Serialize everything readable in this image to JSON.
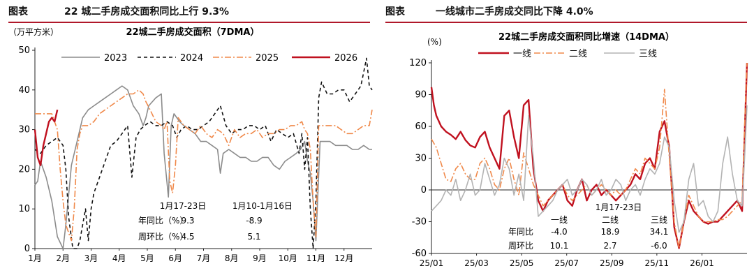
{
  "left": {
    "figure_prefix": "图表",
    "figure_title": "22 城二手房成交面积同比上行 9.3%",
    "chart_title": "22城二手房成交面积（7DMA）",
    "unit": "（万平方米）",
    "table": {
      "col1": "1月17-23日",
      "col2": "1月10-1月16日",
      "rows": [
        {
          "label": "年同比（%）",
          "v1": "9.3",
          "v2": "-8.9"
        },
        {
          "label": "周环比（%）",
          "v1": "4.5",
          "v2": "5.1"
        }
      ]
    }
  },
  "right": {
    "figure_prefix": "图表",
    "figure_title": "一线城市二手房成交同比下降 4.0%",
    "chart_title": "22城二手房成交面积同比增速（14DMA）",
    "unit": "(%)",
    "table": {
      "period": "1月17-23日",
      "cols": [
        "一线",
        "二线",
        "三线"
      ],
      "rows": [
        {
          "label": "年同比",
          "values": [
            "-4.0",
            "18.9",
            "34.1"
          ]
        },
        {
          "label": "周环比",
          "values": [
            "10.1",
            "2.7",
            "-6.0"
          ]
        }
      ]
    }
  },
  "chart_data": [
    {
      "type": "line",
      "title": "22城二手房成交面积（7DMA）",
      "ylabel": "万平方米",
      "ylim": [
        0,
        50
      ],
      "yticks": [
        0,
        10,
        20,
        30,
        40,
        50
      ],
      "xlim": [
        0,
        12
      ],
      "categories": [
        "1月",
        "2月",
        "3月",
        "4月",
        "5月",
        "6月",
        "7月",
        "8月",
        "9月",
        "10月",
        "11月",
        "12月"
      ],
      "legend_position": "top",
      "series": [
        {
          "name": "2023",
          "color": "#8c8c8c",
          "dash": "solid",
          "x": [
            0,
            0.1,
            0.2,
            0.4,
            0.6,
            0.8,
            1.0,
            1.1,
            1.3,
            1.5,
            1.7,
            1.9,
            2.1,
            2.3,
            2.5,
            2.7,
            2.9,
            3.1,
            3.3,
            3.5,
            3.7,
            3.85,
            3.95,
            4.05,
            4.3,
            4.5,
            4.6,
            4.75,
            4.85,
            4.95,
            5.05,
            5.15,
            5.3,
            5.5,
            5.7,
            5.9,
            6.1,
            6.3,
            6.5,
            6.6,
            6.7,
            6.9,
            7.1,
            7.3,
            7.5,
            7.7,
            7.9,
            8.1,
            8.3,
            8.5,
            8.7,
            8.9,
            9.1,
            9.3,
            9.45,
            9.6,
            9.7,
            9.8,
            9.9,
            10.0,
            10.15,
            10.3,
            10.5,
            10.7,
            10.9,
            11.1,
            11.3,
            11.5,
            11.7,
            11.9,
            12.0
          ],
          "y": [
            16,
            17,
            22,
            18,
            12,
            3,
            0,
            6,
            21,
            27,
            33,
            35,
            36,
            37,
            38,
            39,
            40,
            41,
            40,
            36,
            34,
            31,
            33,
            36,
            38,
            39,
            24,
            13,
            31,
            34,
            33,
            32,
            31,
            30,
            29,
            27,
            27,
            26,
            25,
            19,
            24,
            25,
            24,
            23,
            23,
            22,
            22,
            23,
            23,
            21,
            20,
            22,
            23,
            24,
            25,
            27,
            22,
            19,
            12,
            2,
            27,
            27,
            27,
            26,
            26,
            26,
            25,
            25,
            26,
            25,
            25
          ]
        },
        {
          "name": "2024",
          "color": "#111111",
          "dash": "dashed",
          "x": [
            0,
            0.2,
            0.4,
            0.6,
            0.8,
            1.0,
            1.1,
            1.2,
            1.35,
            1.5,
            1.6,
            1.7,
            1.8,
            1.9,
            2.0,
            2.1,
            2.3,
            2.5,
            2.7,
            2.9,
            3.1,
            3.3,
            3.45,
            3.6,
            3.75,
            3.9,
            4.1,
            4.3,
            4.5,
            4.7,
            4.9,
            5.05,
            5.2,
            5.4,
            5.6,
            5.8,
            6.0,
            6.2,
            6.4,
            6.6,
            6.8,
            7.0,
            7.2,
            7.4,
            7.6,
            7.8,
            8.0,
            8.2,
            8.4,
            8.6,
            8.8,
            9.0,
            9.2,
            9.4,
            9.5,
            9.6,
            9.7,
            9.8,
            9.9,
            10.0,
            10.1,
            10.2,
            10.4,
            10.6,
            10.8,
            11.0,
            11.2,
            11.4,
            11.6,
            11.8,
            11.9,
            12.0
          ],
          "y": [
            25,
            24,
            26,
            27,
            28,
            26,
            20,
            8,
            0,
            0,
            2,
            6,
            10,
            2,
            10,
            14,
            18,
            22,
            26,
            27,
            29,
            31,
            18,
            28,
            30,
            31,
            32,
            31,
            31,
            32,
            31,
            28,
            30,
            31,
            30,
            30,
            31,
            32,
            34,
            36,
            31,
            29,
            30,
            30,
            31,
            31,
            30,
            31,
            27,
            30,
            29,
            28,
            29,
            24,
            29,
            20,
            28,
            10,
            0,
            12,
            38,
            42,
            39,
            39,
            40,
            40,
            37,
            39,
            41,
            48,
            41,
            40
          ]
        },
        {
          "name": "2025",
          "color": "#f0894a",
          "dash": "dashdot",
          "x": [
            0,
            0.2,
            0.4,
            0.6,
            0.8,
            0.9,
            1.0,
            1.1,
            1.2,
            1.3,
            1.4,
            1.5,
            1.6,
            1.7,
            1.8,
            1.9,
            2.1,
            2.3,
            2.5,
            2.7,
            2.9,
            3.1,
            3.3,
            3.5,
            3.7,
            3.85,
            3.95,
            4.1,
            4.3,
            4.5,
            4.6,
            4.7,
            4.8,
            4.9,
            5.0,
            5.1,
            5.3,
            5.5,
            5.7,
            5.9,
            6.1,
            6.3,
            6.5,
            6.7,
            6.9,
            7.1,
            7.3,
            7.5,
            7.7,
            7.9,
            8.1,
            8.3,
            8.5,
            8.7,
            8.9,
            9.1,
            9.3,
            9.5,
            9.6,
            9.7,
            9.8,
            9.9,
            10.0,
            10.1,
            10.3,
            10.5,
            10.7,
            10.9,
            11.1,
            11.3,
            11.5,
            11.7,
            11.9,
            12.0
          ],
          "y": [
            34,
            34,
            34,
            34,
            30,
            20,
            12,
            6,
            4,
            2,
            10,
            25,
            29,
            31,
            31,
            31,
            32,
            34,
            35,
            36,
            37,
            38,
            39,
            39,
            40,
            39,
            37,
            35,
            32,
            31,
            30,
            32,
            17,
            14,
            21,
            33,
            31,
            30,
            29,
            31,
            29,
            28,
            30,
            29,
            26,
            30,
            28,
            29,
            29,
            30,
            28,
            29,
            29,
            30,
            30,
            31,
            31,
            32,
            30,
            29,
            25,
            12,
            3,
            31,
            31,
            31,
            31,
            30,
            29,
            29,
            30,
            31,
            31,
            35
          ]
        },
        {
          "name": "2026",
          "color": "#c0111f",
          "dash": "solid",
          "x": [
            0,
            0.1,
            0.2,
            0.3,
            0.4,
            0.5,
            0.6,
            0.7,
            0.8
          ],
          "y": [
            30,
            23,
            21,
            26,
            29,
            32,
            33,
            32,
            35
          ]
        }
      ]
    },
    {
      "type": "line",
      "title": "22城二手房成交面积同比增速（14DMA）",
      "ylabel": "%",
      "ylim": [
        -60,
        120
      ],
      "yticks": [
        -60,
        -30,
        0,
        30,
        60,
        90,
        120
      ],
      "xlim": [
        0,
        13
      ],
      "xticks": [
        "25/01",
        "25/03",
        "25/05",
        "25/07",
        "25/09",
        "25/11",
        "26/01"
      ],
      "legend_position": "top",
      "series": [
        {
          "name": "一线",
          "color": "#c0111f",
          "dash": "solid",
          "x": [
            0,
            0.1,
            0.2,
            0.4,
            0.6,
            0.8,
            1.0,
            1.2,
            1.4,
            1.6,
            1.8,
            2.0,
            2.2,
            2.4,
            2.6,
            2.8,
            3.0,
            3.2,
            3.4,
            3.6,
            3.8,
            4.0,
            4.2,
            4.4,
            4.6,
            4.8,
            5.0,
            5.2,
            5.4,
            5.6,
            5.8,
            6.0,
            6.2,
            6.4,
            6.6,
            6.8,
            7.0,
            7.2,
            7.4,
            7.6,
            7.8,
            8.0,
            8.2,
            8.4,
            8.6,
            8.8,
            9.0,
            9.2,
            9.4,
            9.6,
            9.8,
            10.0,
            10.2,
            10.4,
            10.6,
            10.8,
            11.0,
            11.2,
            11.4,
            11.6,
            11.8,
            12.0,
            12.2,
            12.4,
            12.6,
            12.8,
            12.9,
            13.0
          ],
          "y": [
            97,
            80,
            70,
            60,
            55,
            52,
            48,
            55,
            47,
            42,
            40,
            50,
            55,
            40,
            30,
            20,
            70,
            75,
            50,
            30,
            80,
            85,
            20,
            -10,
            -20,
            -10,
            -5,
            0,
            5,
            -10,
            -15,
            0,
            10,
            -10,
            0,
            5,
            -5,
            0,
            -5,
            -10,
            -5,
            0,
            5,
            15,
            10,
            25,
            30,
            20,
            55,
            65,
            40,
            -35,
            -55,
            -30,
            -10,
            -20,
            -25,
            -30,
            -32,
            -30,
            -30,
            -25,
            -20,
            -15,
            -10,
            -20,
            50,
            120
          ]
        },
        {
          "name": "二线",
          "color": "#f0894a",
          "dash": "dashdot",
          "x": [
            0,
            0.2,
            0.4,
            0.6,
            0.8,
            1.0,
            1.2,
            1.4,
            1.6,
            1.8,
            2.0,
            2.2,
            2.4,
            2.6,
            2.8,
            3.0,
            3.2,
            3.4,
            3.6,
            3.8,
            4.0,
            4.2,
            4.4,
            4.6,
            4.8,
            5.0,
            5.2,
            5.4,
            5.6,
            5.8,
            6.0,
            6.2,
            6.4,
            6.6,
            6.8,
            7.0,
            7.2,
            7.4,
            7.6,
            7.8,
            8.0,
            8.2,
            8.4,
            8.6,
            8.8,
            9.0,
            9.2,
            9.4,
            9.6,
            9.8,
            10.0,
            10.2,
            10.4,
            10.6,
            10.8,
            11.0,
            11.2,
            11.4,
            11.6,
            11.8,
            12.0,
            12.2,
            12.4,
            12.6,
            12.8,
            12.9,
            13.0
          ],
          "y": [
            48,
            40,
            25,
            10,
            8,
            20,
            25,
            15,
            10,
            10,
            25,
            30,
            20,
            5,
            0,
            20,
            30,
            10,
            -5,
            35,
            20,
            5,
            -5,
            -15,
            -10,
            -5,
            0,
            5,
            -5,
            -10,
            -5,
            0,
            5,
            -5,
            0,
            5,
            0,
            -5,
            0,
            -5,
            0,
            10,
            20,
            15,
            30,
            25,
            20,
            40,
            95,
            30,
            -30,
            -55,
            -30,
            -5,
            -15,
            -25,
            -30,
            -30,
            -30,
            -28,
            -28,
            -25,
            -20,
            -15,
            -10,
            60,
            120
          ]
        },
        {
          "name": "三线",
          "color": "#b3b3b3",
          "dash": "solid",
          "x": [
            0,
            0.2,
            0.4,
            0.6,
            0.8,
            1.0,
            1.2,
            1.4,
            1.6,
            1.8,
            2.0,
            2.2,
            2.4,
            2.6,
            2.8,
            3.0,
            3.2,
            3.4,
            3.6,
            3.8,
            4.0,
            4.2,
            4.4,
            4.6,
            4.8,
            5.0,
            5.2,
            5.4,
            5.6,
            5.8,
            6.0,
            6.2,
            6.4,
            6.6,
            6.8,
            7.0,
            7.2,
            7.4,
            7.6,
            7.8,
            8.0,
            8.2,
            8.4,
            8.6,
            8.8,
            9.0,
            9.2,
            9.4,
            9.6,
            9.8,
            10.0,
            10.2,
            10.4,
            10.6,
            10.8,
            11.0,
            11.2,
            11.4,
            11.6,
            11.8,
            12.0,
            12.2,
            12.4,
            12.6,
            12.8,
            12.9,
            13.0
          ],
          "y": [
            -20,
            -15,
            -10,
            0,
            -5,
            10,
            -10,
            0,
            15,
            -5,
            0,
            25,
            10,
            -5,
            5,
            30,
            20,
            -5,
            15,
            -10,
            70,
            30,
            -25,
            -20,
            -15,
            -10,
            0,
            5,
            10,
            -5,
            0,
            10,
            5,
            -5,
            0,
            10,
            -5,
            0,
            10,
            5,
            -10,
            0,
            5,
            -5,
            10,
            20,
            15,
            25,
            50,
            40,
            -10,
            -40,
            -30,
            10,
            25,
            -15,
            -10,
            -25,
            -30,
            -20,
            25,
            50,
            15,
            -10,
            -15,
            30,
            80
          ]
        }
      ]
    }
  ]
}
